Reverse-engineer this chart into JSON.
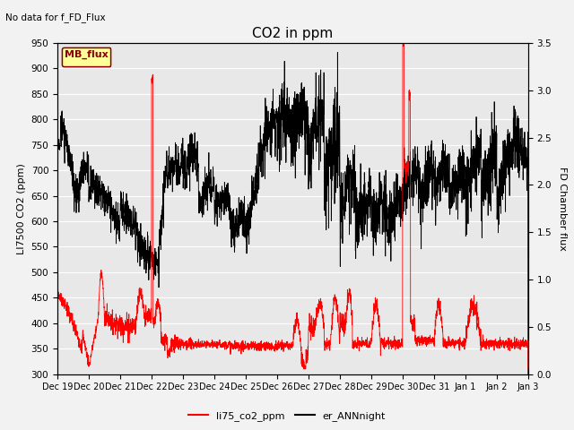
{
  "title": "CO2 in ppm",
  "top_left_text": "No data for f_FD_Flux",
  "legend_box_text": "MB_flux",
  "ylabel_left": "LI7500 CO2 (ppm)",
  "ylabel_right": "FD Chamber flux",
  "ylim_left": [
    300,
    950
  ],
  "ylim_right": [
    0.0,
    3.5
  ],
  "yticks_left": [
    300,
    350,
    400,
    450,
    500,
    550,
    600,
    650,
    700,
    750,
    800,
    850,
    900,
    950
  ],
  "yticks_right": [
    0.0,
    0.5,
    1.0,
    1.5,
    2.0,
    2.5,
    3.0,
    3.5
  ],
  "facecolor": "#f2f2f2",
  "axcolor": "#e8e8e8",
  "line1_color": "#ff0000",
  "line2_color": "#000000",
  "legend1_label": "li75_co2_ppm",
  "legend2_label": "er_ANNnight",
  "x_tick_labels": [
    "Dec 19",
    "Dec 20",
    "Dec 21",
    "Dec 22",
    "Dec 23",
    "Dec 24",
    "Dec 25",
    "Dec 26",
    "Dec 27",
    "Dec 28",
    "Dec 29",
    "Dec 30",
    "Dec 31",
    "Jan 1",
    "Jan 2",
    "Jan 3"
  ]
}
